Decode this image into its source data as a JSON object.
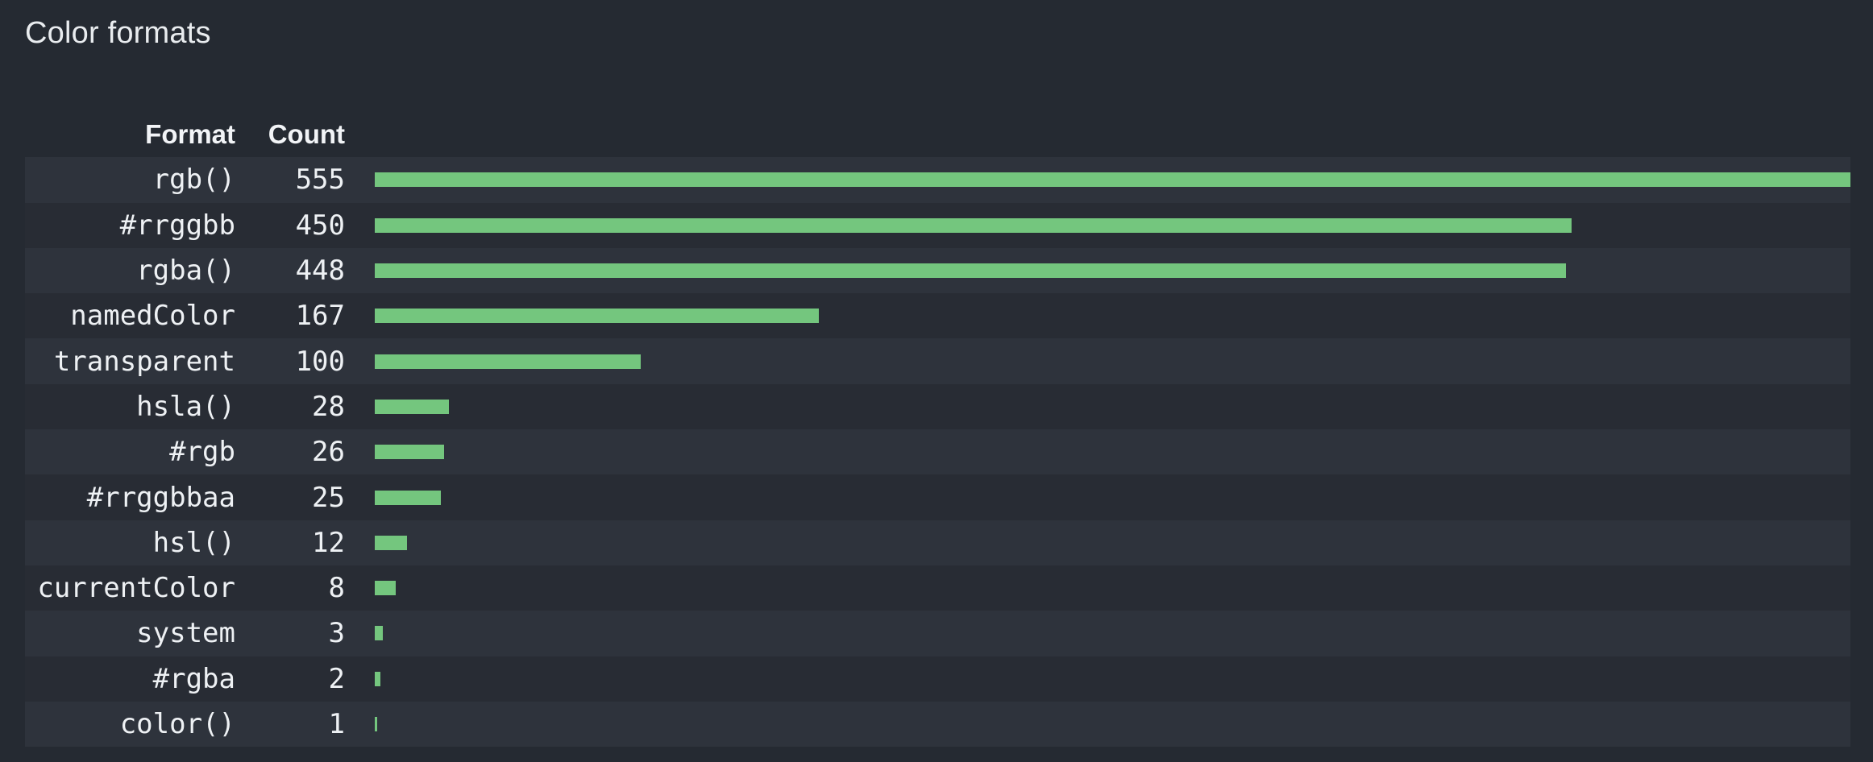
{
  "title": "Color formats",
  "columns": {
    "format": "Format",
    "count": "Count"
  },
  "chart_data": {
    "type": "bar",
    "orientation": "horizontal",
    "title": "Color formats",
    "xlabel": "Count",
    "ylabel": "Format",
    "categories": [
      "rgb()",
      "#rrggbb",
      "rgba()",
      "namedColor",
      "transparent",
      "hsla()",
      "#rgb",
      "#rrggbbaa",
      "hsl()",
      "currentColor",
      "system",
      "#rgba",
      "color()"
    ],
    "values": [
      555,
      450,
      448,
      167,
      100,
      28,
      26,
      25,
      12,
      8,
      3,
      2,
      1
    ],
    "xlim": [
      0,
      555
    ],
    "grid": false,
    "legend": false,
    "bar_color": "#74c67e"
  },
  "colors": {
    "page_bg": "#252a32",
    "row_odd": "#2e333c",
    "row_even": "#282c34",
    "bar": "#74c67e",
    "title_text": "#e9ecef",
    "header_text": "#f2f4f7",
    "cell_text": "#eef1f4"
  }
}
